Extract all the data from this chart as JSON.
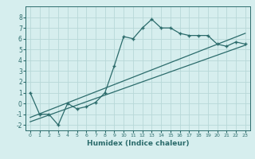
{
  "title": "",
  "xlabel": "Humidex (Indice chaleur)",
  "ylabel": "",
  "bg_color": "#d6eeee",
  "line_color": "#2b6b6b",
  "grid_color": "#b8d8d8",
  "humidex_x": [
    0,
    1,
    2,
    3,
    4,
    5,
    6,
    7,
    8,
    9,
    10,
    11,
    12,
    13,
    14,
    15,
    16,
    17,
    18,
    19,
    20,
    21,
    22,
    23
  ],
  "humidex_y": [
    1,
    -1,
    -1,
    -2,
    0,
    -0.5,
    -0.3,
    0.1,
    1.0,
    3.5,
    6.2,
    6.0,
    7.0,
    7.8,
    7.0,
    7.0,
    6.5,
    6.3,
    6.3,
    6.3,
    5.5,
    5.3,
    5.7,
    5.5
  ],
  "trend1_x": [
    0,
    23
  ],
  "trend1_y": [
    -1.3,
    6.5
  ],
  "trend2_x": [
    0,
    23
  ],
  "trend2_y": [
    -1.7,
    5.4
  ],
  "xlim": [
    -0.5,
    23.5
  ],
  "ylim": [
    -2.5,
    9.0
  ],
  "yticks": [
    -2,
    -1,
    0,
    1,
    2,
    3,
    4,
    5,
    6,
    7,
    8
  ],
  "xticks": [
    0,
    1,
    2,
    3,
    4,
    5,
    6,
    7,
    8,
    9,
    10,
    11,
    12,
    13,
    14,
    15,
    16,
    17,
    18,
    19,
    20,
    21,
    22,
    23
  ]
}
